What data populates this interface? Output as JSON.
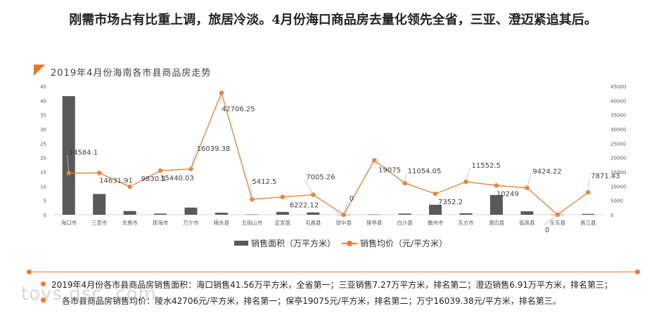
{
  "headline": "刚需市场占有比重上调，旅居冷淡。4月份海口商品房去量化领先全省，三亚、澄迈紧追其后。",
  "chart_data": {
    "type": "bar+line",
    "title": "2019年4月份海南各市县商品房走势",
    "categories": [
      "海口市",
      "三亚市",
      "文昌市",
      "琼海市",
      "万宁市",
      "陵水县",
      "五指山市",
      "定安县",
      "屯昌县",
      "琼中县",
      "保亭县",
      "白沙县",
      "儋州市",
      "东方市",
      "澄迈县",
      "临高县",
      "乐东县",
      "昌江县"
    ],
    "series": [
      {
        "name": "销售面积（万平方米）",
        "type": "bar",
        "axis": "left",
        "color": "#595959",
        "values": [
          41.56,
          7.27,
          1.3,
          0.4,
          2.5,
          0.7,
          0.1,
          1.0,
          0.8,
          0.05,
          0.1,
          0.4,
          3.5,
          0.5,
          6.91,
          1.2,
          0.05,
          0.3
        ]
      },
      {
        "name": "销售均价（元/平方米）",
        "type": "line",
        "axis": "right",
        "color": "#ed7d31",
        "values": [
          14584.1,
          14631.91,
          9830.5,
          15440.03,
          16039.38,
          42706.25,
          5412.5,
          6222.12,
          7005.26,
          0,
          19075,
          11054.05,
          7352.2,
          11552.5,
          10249,
          9424.22,
          0,
          7871.43
        ],
        "labels": [
          "14584.1",
          "14631.91",
          "9830.5",
          "15440.03",
          "16039.38",
          "42706.25",
          "5412.5",
          "6222.12",
          "7005.26",
          "0",
          "19075",
          "11054.05",
          "7352.2",
          "11552.5",
          "10249",
          "9424.22",
          "0",
          "7871.43"
        ]
      }
    ],
    "y_left": {
      "min": 0,
      "max": 45,
      "ticks": [
        "0",
        "5",
        "10",
        "15",
        "20",
        "25",
        "30",
        "35",
        "40",
        "45"
      ]
    },
    "y_right": {
      "min": 0,
      "max": 45000,
      "ticks": [
        "0",
        "5000",
        "10000",
        "15000",
        "20000",
        "25000",
        "30000",
        "35000",
        "40000",
        "45000"
      ]
    },
    "legend_position": "bottom"
  },
  "notes": [
    "2019年4月份各市县商品房销售面积：海口销售41.56万平方米，全省第一；三亚销售7.27万平方米，排名第二；澄迈销售6.91万平方米，排名第三；",
    "各市县商品房销售均价：陵水42706元/平方米，排名第一；保亭19075元/平方米，排名第二；万宁16039.38元/平方米，排名第三。"
  ],
  "watermark": "toys.gsc..com"
}
